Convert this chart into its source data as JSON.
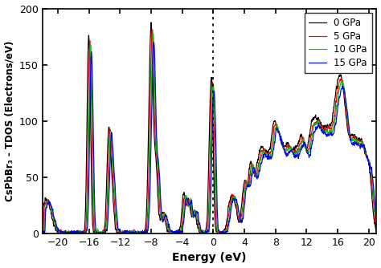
{
  "title": "",
  "xlabel": "Energy (eV)",
  "ylabel": "CsPbBr₃ - TDOS (Electrons/eV)",
  "xlim": [
    -22,
    21
  ],
  "ylim": [
    0,
    200
  ],
  "xticks": [
    -20,
    -16,
    -12,
    -8,
    -4,
    0,
    4,
    8,
    12,
    16,
    20
  ],
  "yticks": [
    0,
    50,
    100,
    150,
    200
  ],
  "legend": [
    "0 GPa",
    "5 GPa",
    "10 GPa",
    "15 GPa"
  ],
  "colors": [
    "#000000",
    "#ff0000",
    "#00cc00",
    "#0000ff"
  ],
  "vline_x": 0,
  "background_color": "#ffffff"
}
